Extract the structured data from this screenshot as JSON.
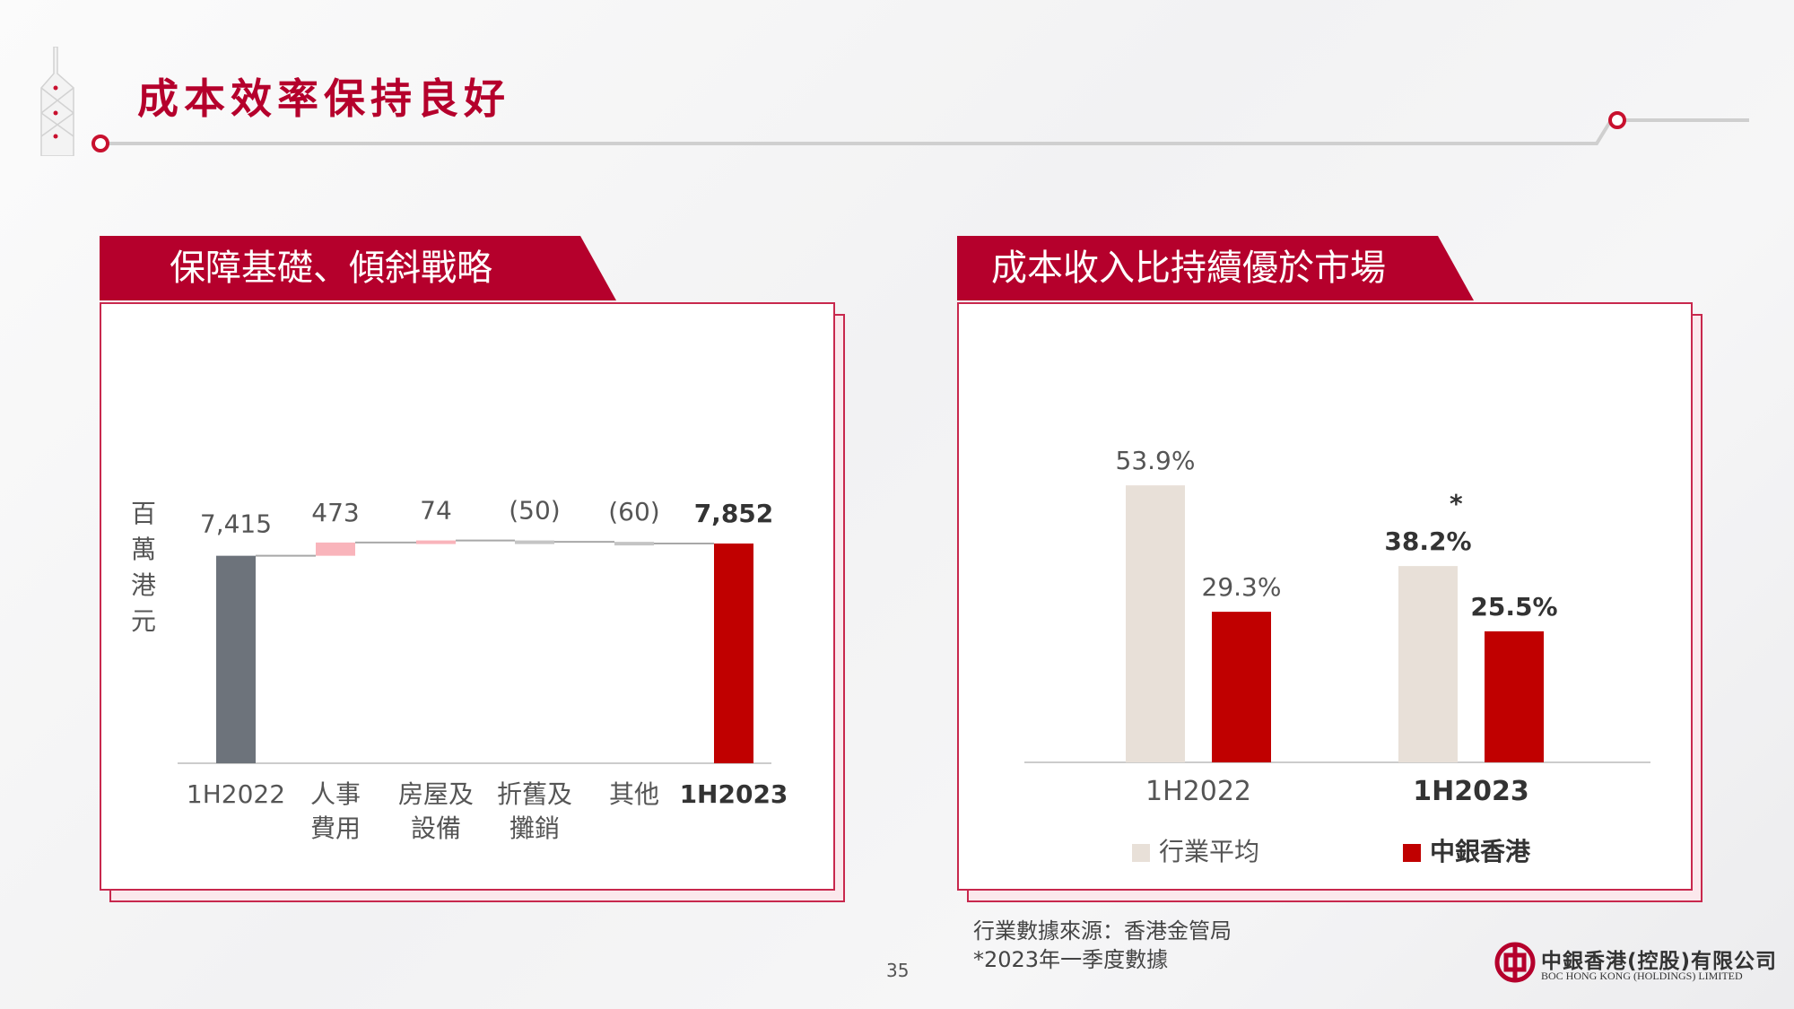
{
  "slide": {
    "title": "成本效率保持良好",
    "page_number": "35",
    "brand_color": "#b5002c"
  },
  "left_panel": {
    "header": "保障基礎、傾斜戰略",
    "y_unit_label": [
      "百",
      "萬",
      "港",
      "元"
    ]
  },
  "right_panel": {
    "header": "成本收入比持續優於市場",
    "asterisk": "*",
    "legend": [
      {
        "label": "行業平均",
        "color": "#e8e0d8"
      },
      {
        "label": "中銀香港",
        "color": "#c00000"
      }
    ]
  },
  "footnote": {
    "line1": "行業數據來源：香港金管局",
    "line2": "*2023年一季度數據"
  },
  "logo": {
    "icon": "boc-logo-icon",
    "name_cn": "中銀香港(控股)有限公司",
    "name_en": "BOC HONG KONG (HOLDINGS) LIMITED"
  },
  "chart_data": [
    {
      "type": "bar",
      "subtype": "waterfall",
      "categories": [
        "1H2022",
        "人事\n費用",
        "房屋及\n設備",
        "折舊及\n攤銷",
        "其他",
        "1H2023"
      ],
      "values": [
        7415,
        473,
        74,
        -50,
        -60,
        7852
      ],
      "data_labels": [
        "7,415",
        "473",
        "74",
        "(50)",
        "(60)",
        "7,852"
      ],
      "kinds": [
        "total",
        "delta",
        "delta",
        "delta",
        "delta",
        "total"
      ],
      "bold": [
        false,
        false,
        false,
        false,
        false,
        true
      ],
      "colors": {
        "start": "#6d737b",
        "increase": "#f9b4bb",
        "decrease": "#c4c4c4",
        "end": "#c00000"
      },
      "ylabel": "百萬港元"
    },
    {
      "type": "bar",
      "categories": [
        "1H2022",
        "1H2023"
      ],
      "series": [
        {
          "name": "行業平均",
          "values": [
            53.9,
            38.2
          ],
          "labels": [
            "53.9%",
            "38.2%"
          ],
          "color": "#e8e0d8"
        },
        {
          "name": "中銀香港",
          "values": [
            29.3,
            25.5
          ],
          "labels": [
            "29.3%",
            "25.5%"
          ],
          "color": "#c00000"
        }
      ],
      "bold_category": "1H2023"
    }
  ]
}
